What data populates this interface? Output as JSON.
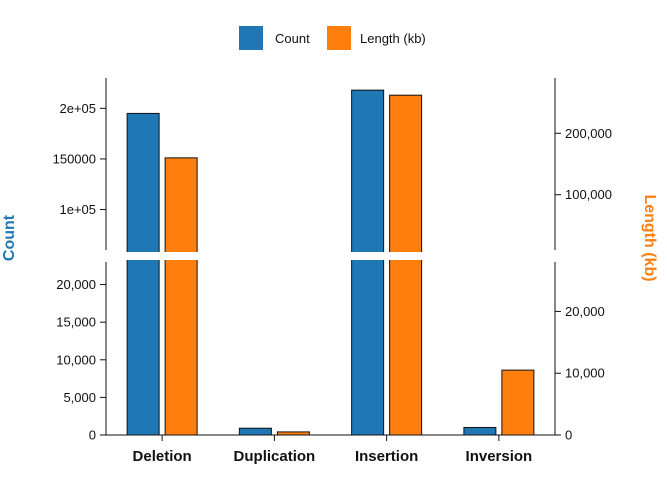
{
  "chart_data": {
    "type": "bar",
    "categories": [
      "Deletion",
      "Duplication",
      "Insertion",
      "Inversion"
    ],
    "series": [
      {
        "name": "Count",
        "color": "#1f77b4",
        "axis": "left",
        "values": [
          195000,
          900,
          218000,
          1000
        ]
      },
      {
        "name": "Length (kb)",
        "color": "#ff7f0e",
        "axis": "right",
        "values": [
          160000,
          500,
          262000,
          10500
        ]
      }
    ],
    "ylabel_left": "Count",
    "ylabel_right": "Length (kb)",
    "axis_break": true,
    "left_axis": {
      "lower_range": [
        0,
        23000
      ],
      "upper_range": [
        60000,
        230000
      ],
      "lower_ticks": [
        {
          "value": 0,
          "label": "0"
        },
        {
          "value": 5000,
          "label": "5,000"
        },
        {
          "value": 10000,
          "label": "10,000"
        },
        {
          "value": 15000,
          "label": "15,000"
        },
        {
          "value": 20000,
          "label": "20,000"
        }
      ],
      "upper_ticks": [
        {
          "value": 100000,
          "label": "1e+05"
        },
        {
          "value": 150000,
          "label": "150000"
        },
        {
          "value": 200000,
          "label": "2e+05"
        }
      ]
    },
    "right_axis": {
      "lower_range": [
        0,
        28000
      ],
      "upper_range": [
        10000,
        290000
      ],
      "lower_ticks": [
        {
          "value": 0,
          "label": "0"
        },
        {
          "value": 10000,
          "label": "10,000"
        },
        {
          "value": 20000,
          "label": "20,000"
        }
      ],
      "upper_ticks": [
        {
          "value": 100000,
          "label": "100,000"
        },
        {
          "value": 200000,
          "label": "200,000"
        }
      ]
    },
    "legend_position": "top-center",
    "grid": false
  }
}
